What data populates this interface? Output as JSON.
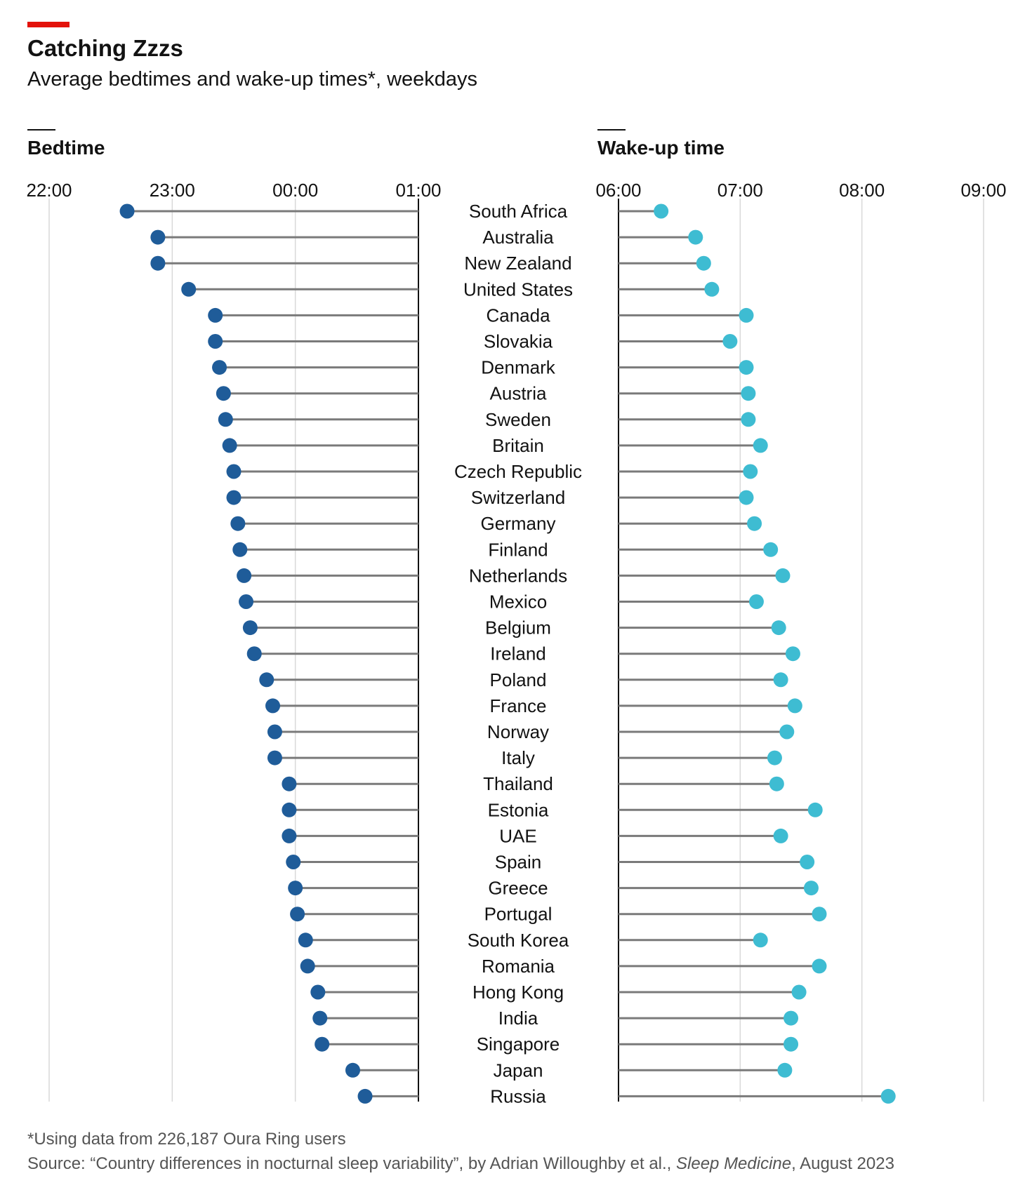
{
  "header": {
    "title": "Catching Zzzs",
    "subtitle": "Average bedtimes and wake-up times*, weekdays"
  },
  "footer": {
    "footnote": "*Using data from 226,187 Oura Ring users",
    "source_prefix": "Source: “Country differences in nocturnal sleep variability”, by Adrian Willoughby et al., ",
    "source_journal": "Sleep Medicine",
    "source_suffix": ", August 2023"
  },
  "colors": {
    "accent": "#e3120b",
    "bedtime_dot": "#1f5c99",
    "wake_dot": "#3ebcd2",
    "stem": "#7a7a7a",
    "gridline": "#d9d9d9",
    "baseline": "#121212"
  },
  "chart_data": [
    {
      "type": "dot",
      "title": "Bedtime",
      "x_ticks": [
        "22:00",
        "23:00",
        "00:00",
        "01:00"
      ],
      "xlim": [
        "22:00",
        "01:00"
      ],
      "baseline": "01:00",
      "categories": [
        "South Africa",
        "Australia",
        "New Zealand",
        "United States",
        "Canada",
        "Slovakia",
        "Denmark",
        "Austria",
        "Sweden",
        "Britain",
        "Czech Republic",
        "Switzerland",
        "Germany",
        "Finland",
        "Netherlands",
        "Mexico",
        "Belgium",
        "Ireland",
        "Poland",
        "France",
        "Norway",
        "Italy",
        "Thailand",
        "Estonia",
        "UAE",
        "Spain",
        "Greece",
        "Portugal",
        "South Korea",
        "Romania",
        "Hong Kong",
        "India",
        "Singapore",
        "Japan",
        "Russia"
      ],
      "values": [
        "22:38",
        "22:53",
        "22:53",
        "23:08",
        "23:21",
        "23:21",
        "23:23",
        "23:25",
        "23:26",
        "23:28",
        "23:30",
        "23:30",
        "23:32",
        "23:33",
        "23:35",
        "23:36",
        "23:38",
        "23:40",
        "23:46",
        "23:49",
        "23:50",
        "23:50",
        "23:57",
        "23:57",
        "23:57",
        "23:59",
        "00:00",
        "00:01",
        "00:05",
        "00:06",
        "00:11",
        "00:12",
        "00:13",
        "00:28",
        "00:34"
      ],
      "grid": true
    },
    {
      "type": "dot",
      "title": "Wake-up time",
      "x_ticks": [
        "06:00",
        "07:00",
        "08:00",
        "09:00"
      ],
      "xlim": [
        "06:00",
        "09:00"
      ],
      "baseline": "06:00",
      "categories": [
        "South Africa",
        "Australia",
        "New Zealand",
        "United States",
        "Canada",
        "Slovakia",
        "Denmark",
        "Austria",
        "Sweden",
        "Britain",
        "Czech Republic",
        "Switzerland",
        "Germany",
        "Finland",
        "Netherlands",
        "Mexico",
        "Belgium",
        "Ireland",
        "Poland",
        "France",
        "Norway",
        "Italy",
        "Thailand",
        "Estonia",
        "UAE",
        "Spain",
        "Greece",
        "Portugal",
        "South Korea",
        "Romania",
        "Hong Kong",
        "India",
        "Singapore",
        "Japan",
        "Russia"
      ],
      "values": [
        "06:21",
        "06:38",
        "06:42",
        "06:46",
        "07:03",
        "06:55",
        "07:03",
        "07:04",
        "07:04",
        "07:10",
        "07:05",
        "07:03",
        "07:07",
        "07:15",
        "07:21",
        "07:08",
        "07:19",
        "07:26",
        "07:20",
        "07:27",
        "07:23",
        "07:17",
        "07:18",
        "07:37",
        "07:20",
        "07:33",
        "07:35",
        "07:39",
        "07:10",
        "07:39",
        "07:29",
        "07:25",
        "07:25",
        "07:22",
        "08:13"
      ],
      "grid": true
    }
  ]
}
